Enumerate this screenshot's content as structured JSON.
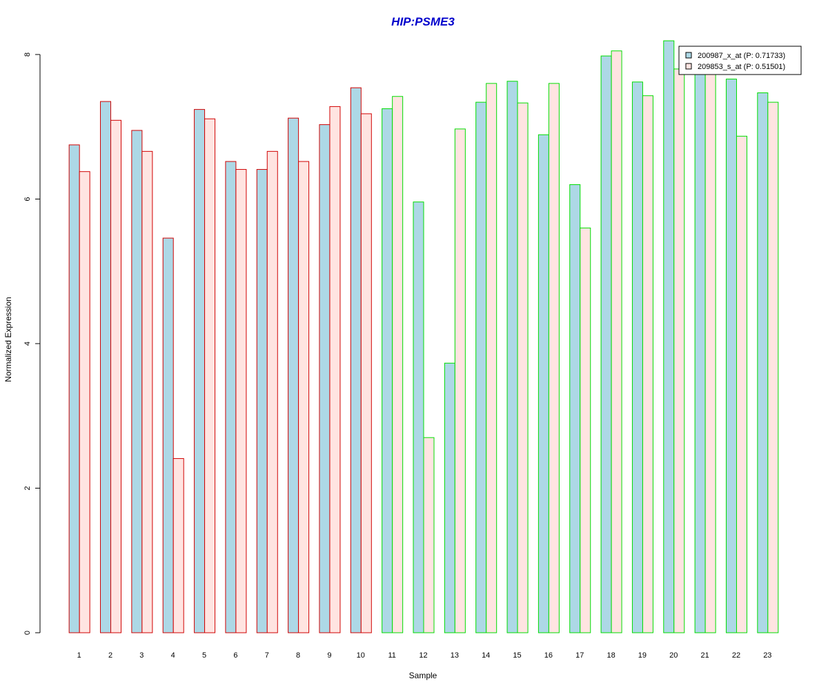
{
  "chart_data": {
    "type": "bar",
    "title": "HIP:PSME3",
    "xlabel": "Sample",
    "ylabel": "Normalized Expression",
    "ylim": [
      0,
      8
    ],
    "yticks": [
      0,
      2,
      4,
      6,
      8
    ],
    "grid": false,
    "legend_position": "top-right",
    "categories": [
      "1",
      "2",
      "3",
      "4",
      "5",
      "6",
      "7",
      "8",
      "9",
      "10",
      "11",
      "12",
      "13",
      "14",
      "15",
      "16",
      "17",
      "18",
      "19",
      "20",
      "21",
      "22",
      "23"
    ],
    "series": [
      {
        "name": "200987_x_at (P: 0.71733)",
        "fill": "#add8e6",
        "values": [
          6.75,
          7.35,
          6.95,
          5.46,
          7.24,
          6.52,
          6.41,
          7.12,
          7.03,
          7.54,
          7.25,
          5.96,
          3.73,
          7.34,
          7.63,
          6.89,
          6.2,
          7.98,
          7.62,
          8.19,
          7.74,
          7.66,
          7.47
        ]
      },
      {
        "name": "209853_s_at (P: 0.51501)",
        "fill": "#ffe4e1",
        "values": [
          6.38,
          7.09,
          6.66,
          2.41,
          7.11,
          6.41,
          6.66,
          6.52,
          7.28,
          7.18,
          7.42,
          2.7,
          6.97,
          7.6,
          7.33,
          7.6,
          5.6,
          8.05,
          7.43,
          7.8,
          7.74,
          6.87,
          7.34
        ]
      }
    ],
    "group_border_colors": [
      "#d00000",
      "#d00000",
      "#d00000",
      "#d00000",
      "#d00000",
      "#d00000",
      "#d00000",
      "#d00000",
      "#d00000",
      "#d00000",
      "#00dd00",
      "#00dd00",
      "#00dd00",
      "#00dd00",
      "#00dd00",
      "#00dd00",
      "#00dd00",
      "#00dd00",
      "#00dd00",
      "#00dd00",
      "#00dd00",
      "#00dd00",
      "#00dd00"
    ],
    "title_color": "#0000cc"
  }
}
